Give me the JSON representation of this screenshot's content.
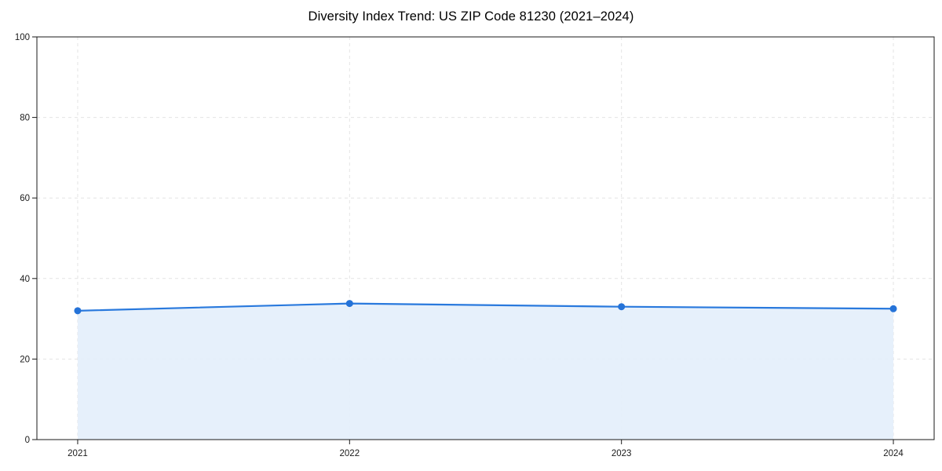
{
  "chart_data": {
    "type": "area",
    "title": "Diversity Index Trend: US ZIP Code 81230 (2021–2024)",
    "x": [
      2021,
      2022,
      2023,
      2024
    ],
    "xticks": [
      2021,
      2022,
      2023,
      2024
    ],
    "xtick_labels": [
      "2021",
      "2022",
      "2023",
      "2024"
    ],
    "series": [
      {
        "name": "Diversity Index",
        "values": [
          32.0,
          33.8,
          33.0,
          32.5
        ]
      }
    ],
    "xlabel": "",
    "ylabel": "",
    "xlim": [
      2020.85,
      2024.15
    ],
    "ylim": [
      0,
      100
    ],
    "yticks": [
      0,
      20,
      40,
      60,
      80,
      100
    ],
    "grid": true,
    "grid_style": "dashed",
    "legend_position": "none",
    "colors": {
      "line": "#2979dd",
      "marker": "#2573d8",
      "fill": "#e3eefb",
      "grid": "#e4e4e4",
      "spine": "#1a1a1a",
      "tick": "#1a1a1a",
      "tick_label": "#1a1a1a",
      "title": "#000000",
      "background": "#ffffff"
    }
  }
}
